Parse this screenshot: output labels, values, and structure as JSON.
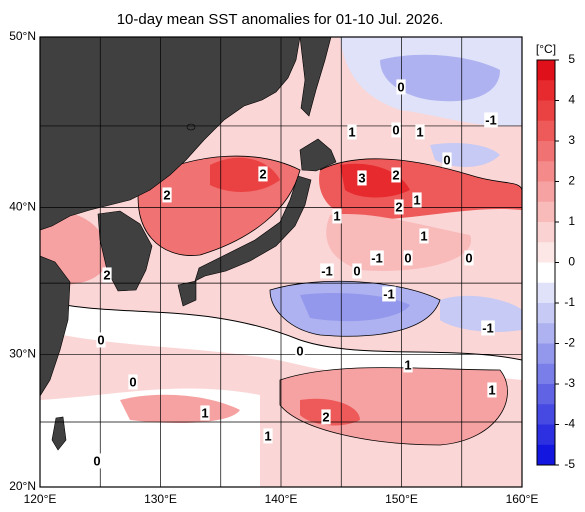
{
  "map": {
    "title": "10-day mean SST anomalies for 01-10 Jul. 2026.",
    "xlim": [
      120,
      160
    ],
    "ylim": [
      20,
      50
    ],
    "xticks": [
      {
        "value": 120,
        "label": "120°E"
      },
      {
        "value": 130,
        "label": "130°E"
      },
      {
        "value": 140,
        "label": "140°E"
      },
      {
        "value": 150,
        "label": "150°E"
      },
      {
        "value": 160,
        "label": "160°E"
      }
    ],
    "yticks": [
      {
        "value": 20,
        "label": "20°N"
      },
      {
        "value": 30,
        "label": "30°N"
      },
      {
        "value": 40,
        "label": "40°N"
      },
      {
        "value": 50,
        "label": "50°N"
      }
    ],
    "grid": true,
    "contour_labels": [
      0,
      1,
      0,
      1,
      -1,
      0,
      2,
      3,
      2,
      2,
      2,
      1,
      1,
      1,
      -1,
      0,
      0,
      -1,
      0,
      -1,
      -1,
      2,
      0,
      0,
      1,
      1,
      0,
      1,
      2,
      1,
      0
    ]
  },
  "colorbar": {
    "unit": "[°C]",
    "lim": [
      -5,
      5
    ],
    "ticks": [
      5,
      4,
      3,
      2,
      1,
      0,
      -1,
      -2,
      -3,
      -4,
      -5
    ],
    "colors": [
      "#e0101a",
      "#e62a2e",
      "#ea4242",
      "#ee5a5a",
      "#f17272",
      "#f48a8a",
      "#f6a2a2",
      "#f9baba",
      "#fbd2d2",
      "#fde6e6",
      "#ffffff",
      "#dfe2f8",
      "#c6caf4",
      "#aeb2f0",
      "#9498ec",
      "#7a7ee8",
      "#6064e4",
      "#464ae2",
      "#2c30e0",
      "#1216de"
    ]
  }
}
